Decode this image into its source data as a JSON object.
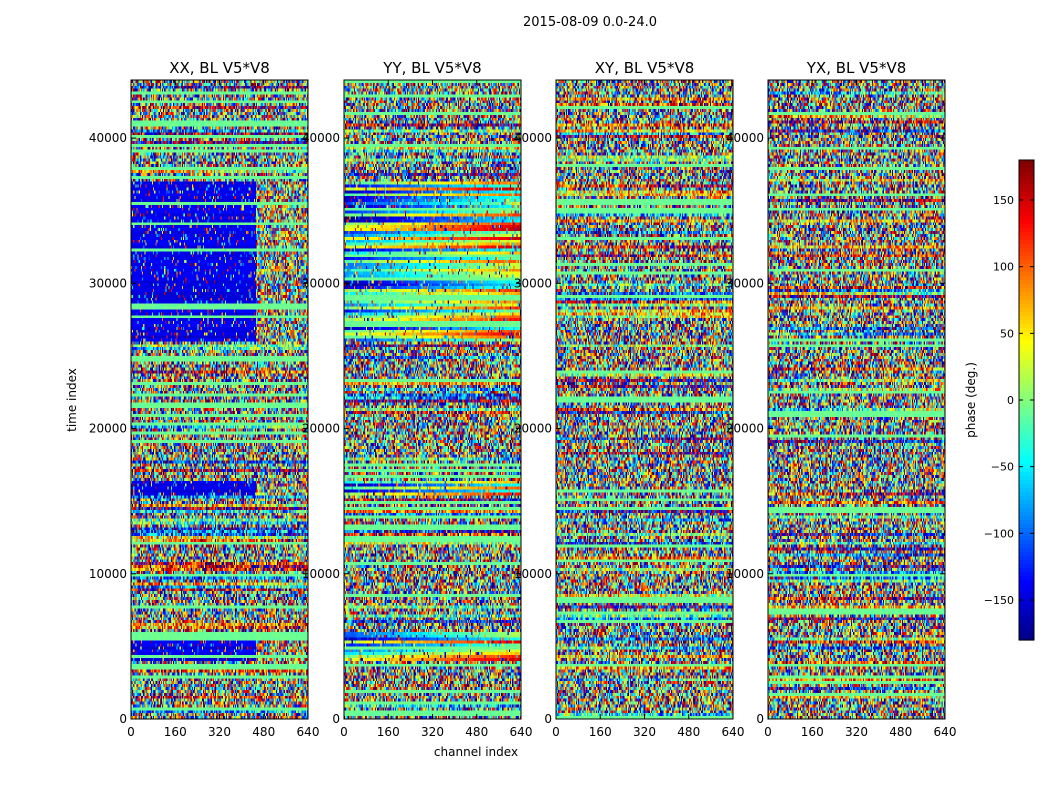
{
  "chart_data": {
    "type": "heatmap",
    "suptitle": "2015-08-09 0.0-24.0",
    "xlabel": "channel index",
    "ylabel": "time index",
    "xlim": [
      0,
      640
    ],
    "ylim": [
      0,
      44000
    ],
    "xticks": [
      0,
      160,
      320,
      480,
      640
    ],
    "xtick_labels": [
      "0",
      "160",
      "320",
      "480",
      "640"
    ],
    "yticks": [
      0,
      10000,
      20000,
      30000,
      40000
    ],
    "ytick_labels": [
      "0",
      "10000",
      "20000",
      "30000",
      "40000"
    ],
    "panels": [
      {
        "title": "XX, BL V5*V8",
        "polarization": "XX"
      },
      {
        "title": "YY, BL V5*V8",
        "polarization": "YY"
      },
      {
        "title": "XY, BL V5*V8",
        "polarization": "XY"
      },
      {
        "title": "YX, BL V5*V8",
        "polarization": "YX"
      }
    ],
    "colorbar": {
      "label": "phase (deg.)",
      "range": [
        -180,
        180
      ],
      "ticks": [
        150,
        100,
        50,
        0,
        -50,
        -100,
        -150
      ],
      "tick_labels": [
        "150",
        "100",
        "50",
        "0",
        "−50",
        "−100",
        "−150"
      ],
      "colormap": "jet"
    },
    "bands": [
      {
        "time_start": 4000,
        "time_end": 6000,
        "description": "coherent phase band (low channels)"
      },
      {
        "time_start": 15500,
        "time_end": 16300,
        "description": "strong coherent phase gradient across channels"
      },
      {
        "time_start": 26000,
        "time_end": 37000,
        "description": "coherent phase bands in XX/YY"
      }
    ]
  }
}
